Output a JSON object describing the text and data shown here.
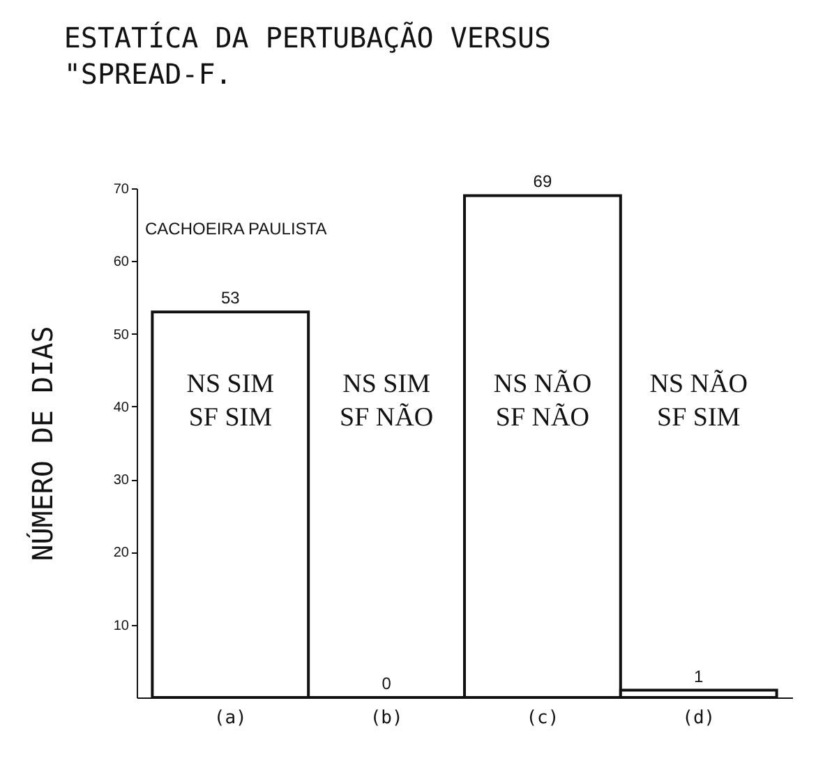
{
  "chart_data": {
    "type": "bar",
    "title": "ESTATÍCA DA PERTUBAÇÃO VERSUS\n\"SPREAD-F.",
    "ylabel": "NÚMERO DE DIAS",
    "categories": [
      "(a)",
      "(b)",
      "(c)",
      "(d)"
    ],
    "values": [
      53,
      0,
      69,
      1
    ],
    "color": "#111111",
    "data_labels": true,
    "ylim": [
      0,
      70
    ],
    "yticks": [
      10,
      20,
      30,
      40,
      50,
      60,
      70
    ],
    "annotations": [
      "CACHOEIRA PAULISTA",
      "NS SIM\nSF SIM",
      "NS SIM\nSF NÃO",
      "NS NÃO\nSF NÃO",
      "NS NÃO\nSF SIM"
    ]
  }
}
